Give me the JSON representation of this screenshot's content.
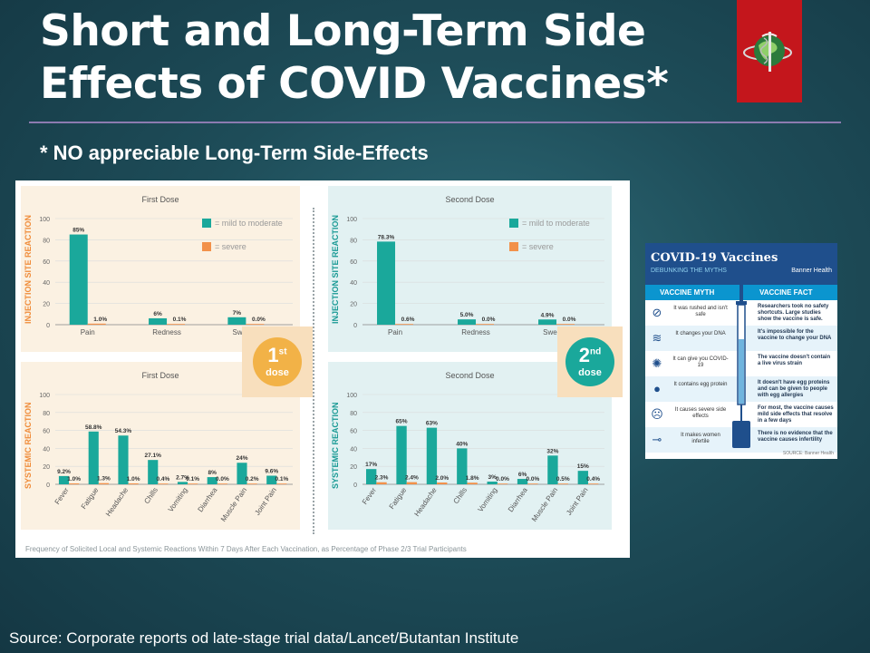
{
  "slide": {
    "title": "Short and Long-Term Side Effects of COVID Vaccines*",
    "subtitle": "* NO appreciable Long-Term Side-Effects",
    "source": "Source: Corporate reports od late-stage trial data/Lancet/Butantan Institute",
    "footnote": "Frequency of Solicited Local and Systemic Reactions Within 7 Days After Each Vaccination, as Percentage of Phase 2/3 Trial Participants"
  },
  "colors": {
    "mild": "#1aa89b",
    "severe": "#f2914a",
    "dose1_bg": "#fbf1e2",
    "dose2_bg": "#e2f1f2",
    "dose1_label": "#f08c3a",
    "dose2_label": "#1a9a95",
    "badge": "#f2b247"
  },
  "legend": {
    "mild": "= mild to moderate",
    "severe": "= severe"
  },
  "badges": [
    {
      "number": "1",
      "suffix": "st",
      "word": "dose"
    },
    {
      "number": "2",
      "suffix": "nd",
      "word": "dose"
    }
  ],
  "chart_data": [
    {
      "type": "bar",
      "id": "injection-dose1",
      "title": "First Dose",
      "ylabel": "INJECTION SITE REACTION",
      "ylim": [
        0,
        100
      ],
      "yticks": [
        0,
        20,
        40,
        60,
        80,
        100
      ],
      "categories": [
        "Pain",
        "Redness",
        "Swelling"
      ],
      "series": [
        {
          "name": "= mild to moderate",
          "values": [
            85,
            6,
            7
          ],
          "labels": [
            "85%",
            "6%",
            "7%"
          ]
        },
        {
          "name": "= severe",
          "values": [
            1.0,
            0.1,
            0.0
          ],
          "labels": [
            "1.0%",
            "0.1%",
            "0.0%"
          ]
        }
      ]
    },
    {
      "type": "bar",
      "id": "injection-dose2",
      "title": "Second Dose",
      "ylabel": "INJECTION SITE REACTION",
      "ylim": [
        0,
        100
      ],
      "yticks": [
        0,
        20,
        40,
        60,
        80,
        100
      ],
      "categories": [
        "Pain",
        "Redness",
        "Swelling"
      ],
      "series": [
        {
          "name": "= mild to moderate",
          "values": [
            78.3,
            5.0,
            4.9
          ],
          "labels": [
            "78.3%",
            "5.0%",
            "4.9%"
          ]
        },
        {
          "name": "= severe",
          "values": [
            0.6,
            0.0,
            0.0
          ],
          "labels": [
            "0.6%",
            "0.0%",
            "0.0%"
          ]
        }
      ]
    },
    {
      "type": "bar",
      "id": "systemic-dose1",
      "title": "First Dose",
      "ylabel": "SYSTEMIC REACTION",
      "ylim": [
        0,
        100
      ],
      "yticks": [
        0,
        20,
        40,
        60,
        80,
        100
      ],
      "categories": [
        "Fever",
        "Fatigue",
        "Headache",
        "Chills",
        "Vomiting",
        "Diarrhea",
        "Muscle Pain",
        "Joint Pain"
      ],
      "series": [
        {
          "name": "= mild to moderate",
          "values": [
            9.2,
            58.8,
            54.3,
            27.1,
            2.7,
            8,
            24,
            9.6
          ],
          "labels": [
            "9.2%",
            "58.8%",
            "54.3%",
            "27.1%",
            "2.7%",
            "8%",
            "24%",
            "9.6%"
          ]
        },
        {
          "name": "= severe",
          "values": [
            1.0,
            1.3,
            1.0,
            0.4,
            0.1,
            0.0,
            0.2,
            0.1
          ],
          "labels": [
            "1.0%",
            "1.3%",
            "1.0%",
            "0.4%",
            "0.1%",
            "0.0%",
            "0.2%",
            "0.1%"
          ]
        }
      ]
    },
    {
      "type": "bar",
      "id": "systemic-dose2",
      "title": "Second Dose",
      "ylabel": "SYSTEMIC REACTION",
      "ylim": [
        0,
        100
      ],
      "yticks": [
        0,
        20,
        40,
        60,
        80,
        100
      ],
      "categories": [
        "Fever",
        "Fatigue",
        "Headache",
        "Chills",
        "Vomiting",
        "Diarrhea",
        "Muscle Pain",
        "Joint Pain"
      ],
      "series": [
        {
          "name": "= mild to moderate",
          "values": [
            17,
            65,
            63,
            40,
            3,
            6,
            32,
            15
          ],
          "labels": [
            "17%",
            "65%",
            "63%",
            "40%",
            "3%",
            "6%",
            "32%",
            "15%"
          ]
        },
        {
          "name": "= severe",
          "values": [
            2.3,
            2.4,
            2.0,
            1.8,
            0.0,
            0.0,
            0.5,
            0.4
          ],
          "labels": [
            "2.3%",
            "2.4%",
            "2.0%",
            "1.8%",
            "0.0%",
            "0.0%",
            "0.5%",
            "0.4%"
          ]
        }
      ]
    }
  ],
  "myths": {
    "title": "COVID-19 Vaccines",
    "subtitle": "DEBUNKING THE MYTHS",
    "brand": "Banner Health",
    "col_myth": "VACCINE MYTH",
    "col_fact": "VACCINE FACT",
    "source": "SOURCE: Banner Health",
    "rows": [
      {
        "icon": "no-symbol-icon",
        "glyph": "⊘",
        "myth": "It was rushed and isn't safe",
        "fact": "Researchers took no safety shortcuts. Large studies show the vaccine is safe."
      },
      {
        "icon": "dna-icon",
        "glyph": "≋",
        "myth": "It changes your DNA",
        "fact": "It's impossible for the vaccine to change your DNA"
      },
      {
        "icon": "virus-icon",
        "glyph": "✺",
        "myth": "It can give you COVID-19",
        "fact": "The vaccine doesn't contain a live virus strain"
      },
      {
        "icon": "egg-icon",
        "glyph": "●",
        "myth": "It contains egg protein",
        "fact": "It doesn't have egg proteins and can be given to people with egg allergies"
      },
      {
        "icon": "sick-person-icon",
        "glyph": "☹",
        "myth": "It causes severe side effects",
        "fact": "For most, the vaccine causes mild side effects that resolve in a few days"
      },
      {
        "icon": "thermometer-icon",
        "glyph": "⊸",
        "myth": "It makes women infertile",
        "fact": "There is no evidence that the vaccine causes infertility"
      }
    ]
  }
}
